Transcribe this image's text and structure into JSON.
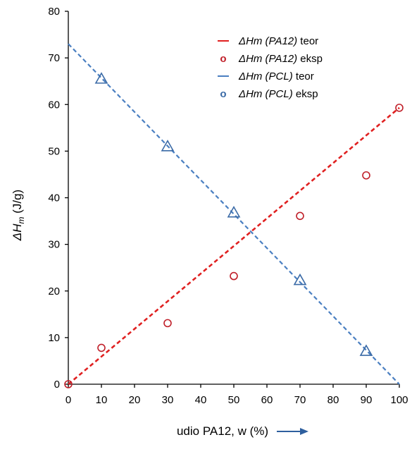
{
  "chart_data": {
    "type": "line",
    "xlabel": "udio PA12, w (%)",
    "ylabel_parts": [
      "ΔH",
      "m",
      " (J/g)"
    ],
    "xlim": [
      0,
      100
    ],
    "ylim": [
      0,
      80
    ],
    "x_ticks": [
      "0",
      "10",
      "20",
      "30",
      "40",
      "50",
      "60",
      "70",
      "80",
      "90",
      "100"
    ],
    "y_ticks": [
      "0",
      "10",
      "20",
      "30",
      "40",
      "50",
      "60",
      "70",
      "80"
    ],
    "grid": false,
    "legend_position": "top-right",
    "colors": {
      "pa12": "#e02020",
      "pcl": "#4a7fc1",
      "pa12_marker": "#c0202a",
      "pcl_marker": "#3a6aa6",
      "arrow": "#2e5f9e"
    },
    "legend": [
      {
        "italic": "ΔHm (PA12)",
        "suffix": " teor"
      },
      {
        "italic": "ΔHm (PA12)",
        "suffix": " eksp"
      },
      {
        "italic": "ΔHm (PCL)",
        "suffix": " teor"
      },
      {
        "italic": "ΔHm (PCL)",
        "suffix": " eksp"
      }
    ],
    "series": [
      {
        "name": "ΔHm (PA12) teor",
        "style": "dashed-line",
        "x": [
          0,
          100
        ],
        "y": [
          0,
          59.3
        ]
      },
      {
        "name": "ΔHm (PA12) eksp",
        "style": "circle",
        "x": [
          0,
          10,
          30,
          50,
          70,
          90,
          100
        ],
        "y": [
          0,
          7.8,
          13.1,
          23.2,
          36.1,
          44.8,
          59.3
        ]
      },
      {
        "name": "ΔHm (PCL) teor",
        "style": "dashed-line",
        "x": [
          0,
          100
        ],
        "y": [
          73,
          0
        ]
      },
      {
        "name": "ΔHm (PCL) eksp",
        "style": "triangle",
        "x": [
          10,
          30,
          50,
          70,
          90
        ],
        "y": [
          65.5,
          51,
          36.8,
          22.3,
          7.1
        ]
      }
    ]
  }
}
